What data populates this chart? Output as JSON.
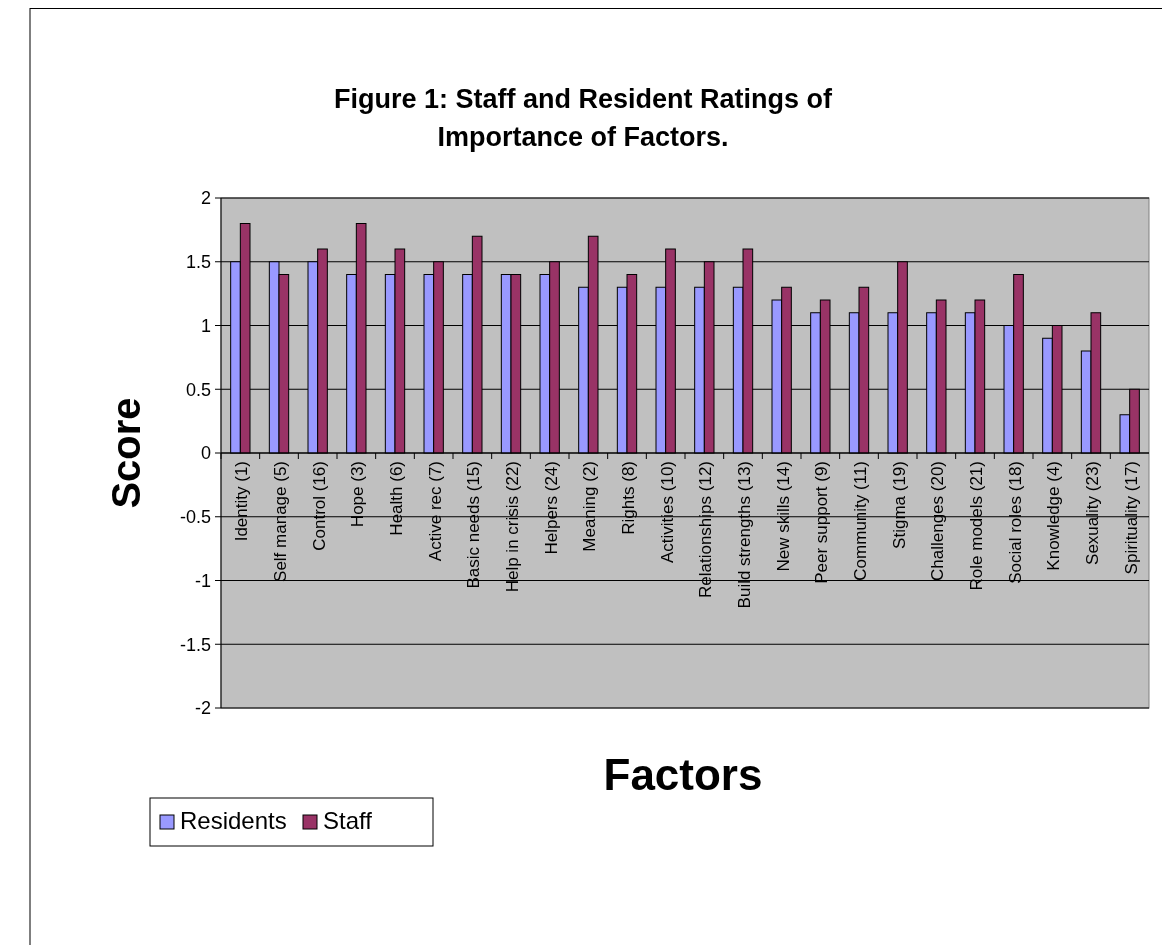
{
  "chart_data": {
    "type": "bar",
    "title": "Figure 1: Staff and Resident Ratings of Importance of Factors.",
    "xlabel": "Factors",
    "ylabel": "Score",
    "categories": [
      "Identity (1)",
      "Self manage (5)",
      "Control (16)",
      "Hope (3)",
      "Health (6)",
      "Active rec (7)",
      "Basic needs (15)",
      "Help in crisis (22)",
      "Helpers (24)",
      "Meaning (2)",
      "Rights (8)",
      "Activities (10)",
      "Relationships (12)",
      "Build strengths (13)",
      "New skills (14)",
      "Peer support (9)",
      "Community (11)",
      "Stigma (19)",
      "Challenges (20)",
      "Role models (21)",
      "Social roles (18)",
      "Knowledge (4)",
      "Sexuality (23)",
      "Spirituality (17)"
    ],
    "series": [
      {
        "name": "Residents",
        "color": "#9999ff",
        "values": [
          1.5,
          1.5,
          1.5,
          1.4,
          1.4,
          1.4,
          1.4,
          1.4,
          1.4,
          1.3,
          1.3,
          1.3,
          1.3,
          1.3,
          1.2,
          1.1,
          1.1,
          1.1,
          1.1,
          1.1,
          1.0,
          0.9,
          0.8,
          0.3
        ]
      },
      {
        "name": "Staff",
        "color": "#993366",
        "values": [
          1.8,
          1.4,
          1.6,
          1.8,
          1.6,
          1.5,
          1.7,
          1.4,
          1.5,
          1.7,
          1.4,
          1.6,
          1.5,
          1.6,
          1.3,
          1.2,
          1.3,
          1.5,
          1.2,
          1.2,
          1.4,
          1.0,
          1.1,
          0.5
        ]
      }
    ],
    "ylim": [
      -2,
      2
    ],
    "yticks": [
      -2,
      -1.5,
      -1,
      -0.5,
      0,
      0.5,
      1,
      1.5,
      2
    ],
    "grid": "y",
    "legend": "bottom left"
  }
}
